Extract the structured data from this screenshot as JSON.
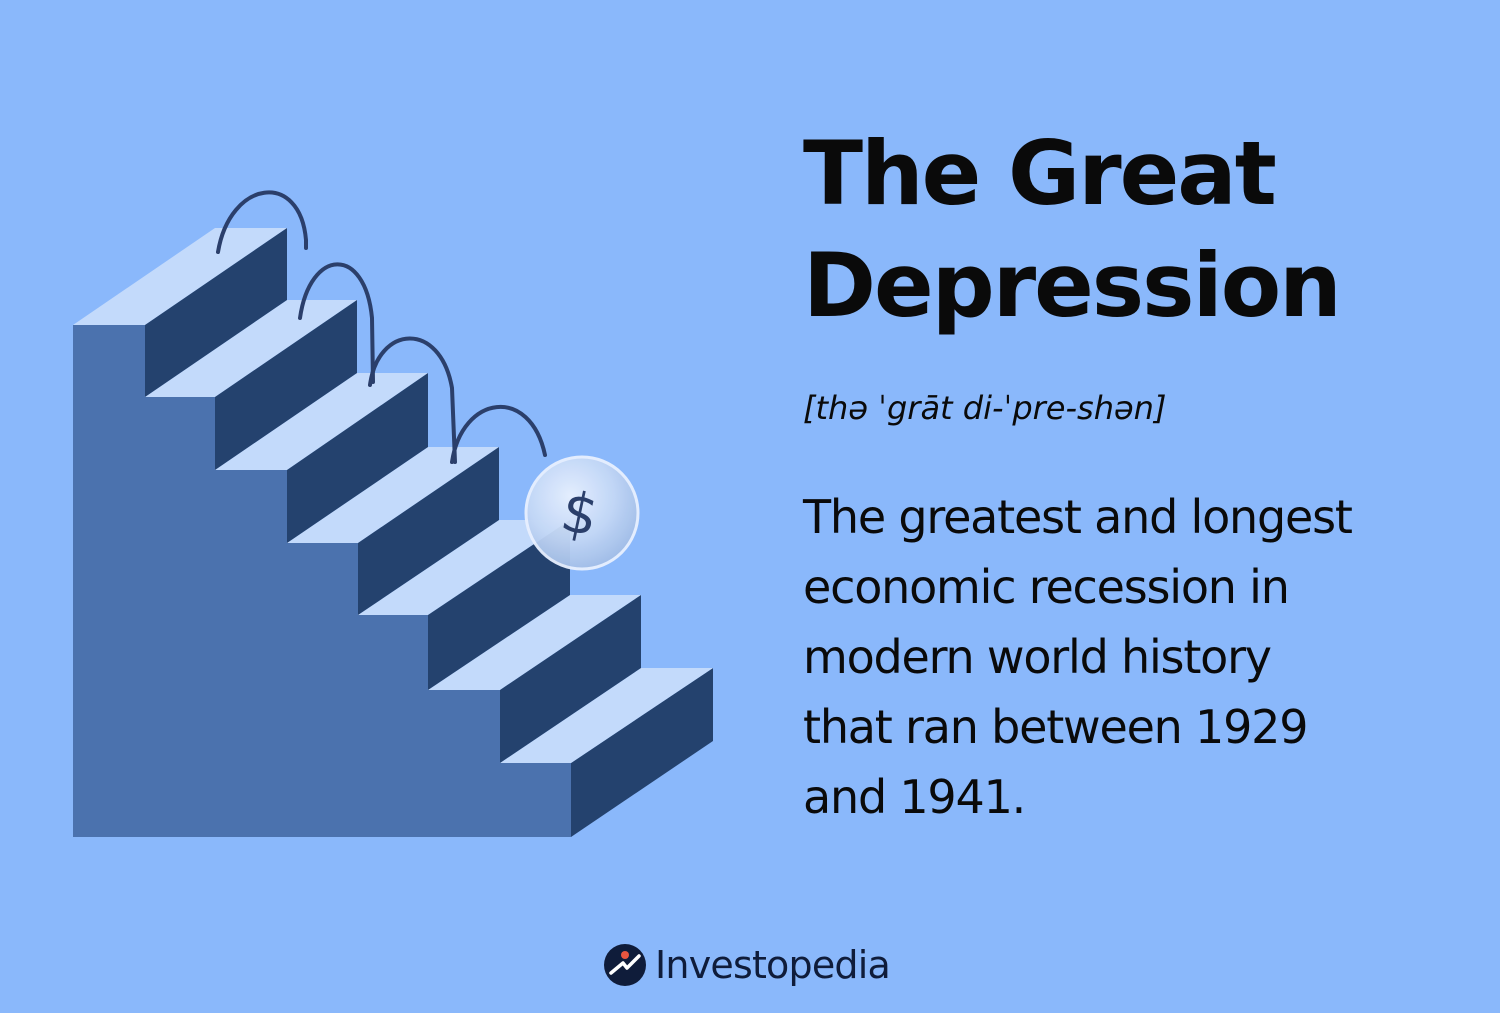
{
  "title": {
    "line1": "The Great",
    "line2": "Depression"
  },
  "pronunciation": "[thə ˈgrāt di-ˈpre-shən]",
  "definition": {
    "line1": "The greatest and longest",
    "line2": "economic recession in",
    "line3": "modern world history",
    "line4": "that ran between 1929",
    "line5": "and 1941."
  },
  "coin": {
    "symbol": "$"
  },
  "brand": {
    "name": "Investopedia",
    "logo_icon": "investopedia-logo-icon"
  },
  "colors": {
    "background": "#8ab8fb",
    "stair_side": "#4b72ae",
    "stair_riser": "#24426e",
    "stair_tread": "#c3dafb",
    "bounce_line": "#2b3f6b",
    "brand_text": "#0f1c3a",
    "brand_accent": "#e8553f"
  }
}
